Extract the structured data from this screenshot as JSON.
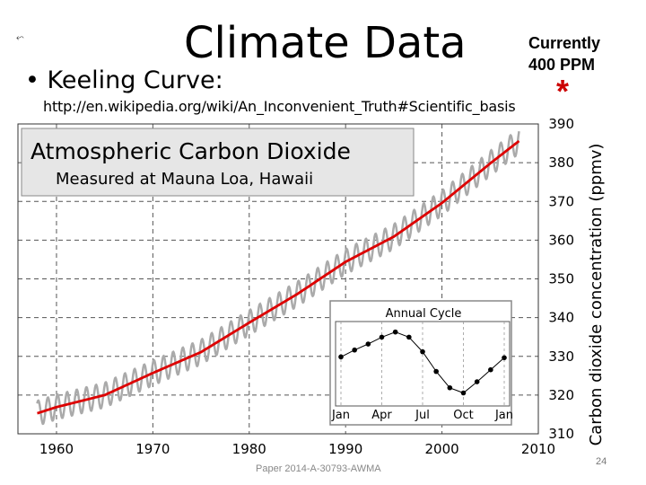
{
  "slide": {
    "title": "Climate Data",
    "bullet": "• Keeling Curve:",
    "note_line1": "Currently",
    "note_line2": "400 PPM",
    "star": "*",
    "url": "http://en.wikipedia.org/wiki/An_Inconvenient_Truth#Scientific_basis",
    "footer": "Paper 2014-A-30793-AWMA",
    "page_number": "24",
    "icon": "slide-note-icon"
  },
  "chart_data": {
    "type": "line",
    "title": "Atmospheric Carbon Dioxide",
    "subtitle": "Measured at Mauna Loa, Hawaii",
    "xlabel": "",
    "ylabel": "Carbon dioxide concentration (ppmv)",
    "xlim": [
      1956,
      2010
    ],
    "ylim": [
      310,
      390
    ],
    "x_ticks": [
      "1960",
      "1970",
      "1980",
      "1990",
      "2000",
      "2010"
    ],
    "y_ticks": [
      "310",
      "320",
      "330",
      "340",
      "350",
      "360",
      "370",
      "380",
      "390"
    ],
    "grid": true,
    "series": [
      {
        "color": "#aaaaaa",
        "kind": "monthly seasonal"
      },
      {
        "color": "#dd0000",
        "kind": "annual average"
      }
    ],
    "trend_points": {
      "x": [
        1958,
        1960,
        1965,
        1970,
        1975,
        1980,
        1985,
        1990,
        1995,
        2000,
        2005,
        2008
      ],
      "y": [
        315.3,
        316.9,
        320.0,
        325.7,
        331.1,
        338.7,
        346.1,
        354.4,
        360.9,
        369.6,
        379.8,
        385.6
      ]
    },
    "seasonal_amplitude": 3.2,
    "inset": {
      "title": "Annual Cycle",
      "x_labels": [
        "Jan",
        "Apr",
        "Jul",
        "Oct",
        "Jan"
      ],
      "values": [
        0.3,
        1.1,
        1.8,
        2.6,
        3.2,
        2.6,
        0.9,
        -1.4,
        -3.3,
        -3.9,
        -2.6,
        -1.2,
        0.2
      ]
    },
    "colors": {
      "grid": "#555555",
      "title_box": "#e6e6e6",
      "trend": "#dd0000",
      "seasonal": "#aaaaaa"
    }
  }
}
